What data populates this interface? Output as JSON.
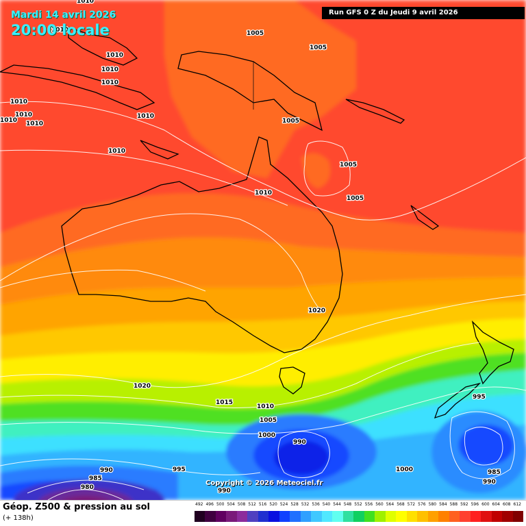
{
  "header": {
    "date_label": "Mardi 14 avril 2026",
    "time_label": "20:00 locale",
    "run_label": "Run GFS 0 Z du Jeudi 9 avril 2026"
  },
  "copyright": "Copyright © 2026 Meteociel.fr",
  "footer": {
    "product_title": "Géop. Z500 & pression au sol",
    "lead_time": "(+ 138h)"
  },
  "legend": {
    "values": [
      "492",
      "496",
      "500",
      "504",
      "508",
      "512",
      "516",
      "520",
      "524",
      "528",
      "532",
      "536",
      "540",
      "544",
      "548",
      "552",
      "556",
      "560",
      "564",
      "568",
      "572",
      "576",
      "580",
      "584",
      "588",
      "592",
      "596",
      "600",
      "604",
      "608",
      "612"
    ],
    "colors": [
      "#200020",
      "#400040",
      "#600060",
      "#7a1a7a",
      "#8c2c9c",
      "#5040c0",
      "#2030d0",
      "#0a10e0",
      "#1040ff",
      "#2070ff",
      "#30a0ff",
      "#40c8ff",
      "#50e8ff",
      "#60fff0",
      "#30e0a0",
      "#10d060",
      "#40e020",
      "#a0f000",
      "#e0ff00",
      "#ffff00",
      "#ffe000",
      "#ffc000",
      "#ffa000",
      "#ff8000",
      "#ff6020",
      "#ff4030",
      "#ff2020",
      "#e01010",
      "#c00000",
      "#a00000",
      "#800000"
    ]
  },
  "isobars": [
    {
      "v": "1010"
    },
    {
      "v": "1010"
    },
    {
      "v": "1010"
    },
    {
      "v": "1010"
    },
    {
      "v": "1010"
    },
    {
      "v": "1010"
    },
    {
      "v": "1010"
    },
    {
      "v": "1010"
    },
    {
      "v": "1010"
    },
    {
      "v": "1010"
    },
    {
      "v": "1010"
    },
    {
      "v": "1010"
    },
    {
      "v": "1005"
    },
    {
      "v": "1005"
    },
    {
      "v": "1005"
    },
    {
      "v": "1005"
    },
    {
      "v": "1005"
    },
    {
      "v": "1020"
    },
    {
      "v": "1020"
    },
    {
      "v": "1015"
    },
    {
      "v": "1010"
    },
    {
      "v": "1005"
    },
    {
      "v": "1000"
    },
    {
      "v": "990"
    },
    {
      "v": "995"
    },
    {
      "v": "1000"
    },
    {
      "v": "985"
    },
    {
      "v": "990"
    },
    {
      "v": "990"
    },
    {
      "v": "995"
    },
    {
      "v": "985"
    },
    {
      "v": "980"
    },
    {
      "v": "990"
    }
  ]
}
